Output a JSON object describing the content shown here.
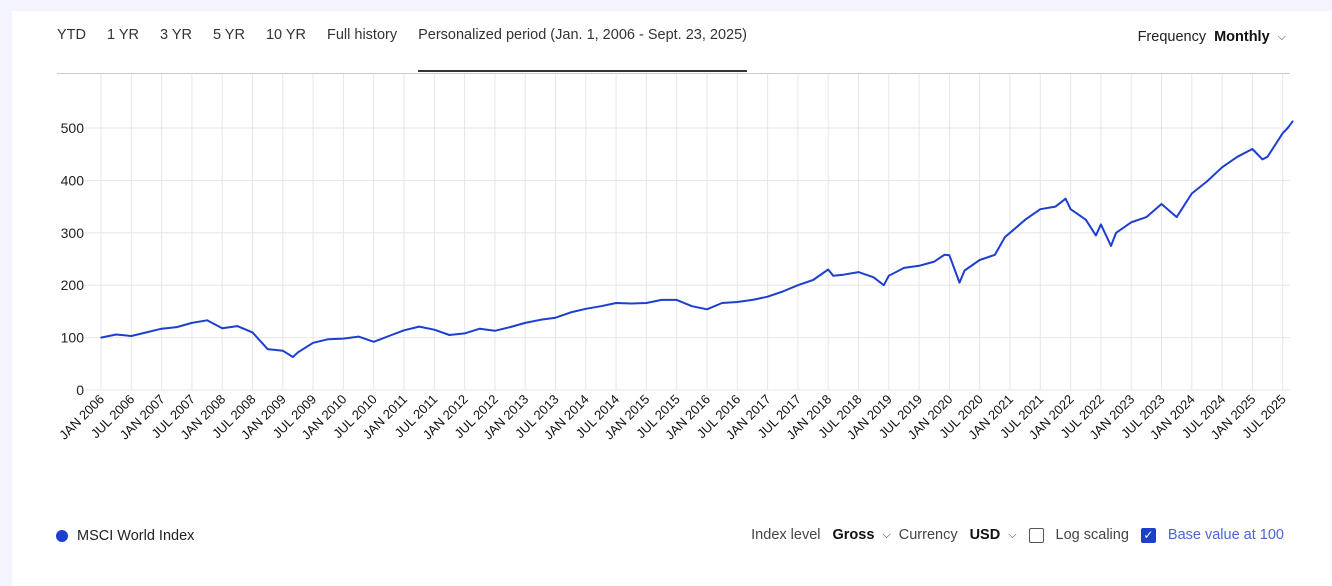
{
  "tabs": [
    "YTD",
    "1 YR",
    "3 YR",
    "5 YR",
    "10 YR",
    "Full history",
    "Personalized period (Jan. 1, 2006 - Sept. 23, 2025)"
  ],
  "active_tab": 6,
  "frequency": {
    "label": "Frequency",
    "value": "Monthly"
  },
  "legend": {
    "label": "MSCI World Index",
    "color": "#1d3fcf"
  },
  "controls": {
    "index_level_label": "Index level",
    "index_level_value": "Gross",
    "currency_label": "Currency",
    "currency_value": "USD",
    "log_scaling_label": "Log scaling",
    "log_scaling_checked": false,
    "base_value_label": "Base value at 100",
    "base_value_checked": true
  },
  "chart_data": {
    "type": "line",
    "title": "",
    "xlabel": "",
    "ylabel": "",
    "ylim": [
      0,
      500
    ],
    "yticks": [
      "0",
      "100",
      "200",
      "300",
      "400",
      "500"
    ],
    "xticks": [
      "JAN 2006",
      "JUL 2006",
      "JAN 2007",
      "JUL 2007",
      "JAN 2008",
      "JUL 2008",
      "JAN 2009",
      "JUL 2009",
      "JAN 2010",
      "JUL 2010",
      "JAN 2011",
      "JUL 2011",
      "JAN 2012",
      "JUL 2012",
      "JAN 2013",
      "JUL 2013",
      "JAN 2014",
      "JUL 2014",
      "JAN 2015",
      "JUL 2015",
      "JAN 2016",
      "JUL 2016",
      "JAN 2017",
      "JUL 2017",
      "JAN 2018",
      "JUL 2018",
      "JAN 2019",
      "JUL 2019",
      "JAN 2020",
      "JUL 2020",
      "JAN 2021",
      "JUL 2021",
      "JAN 2022",
      "JUL 2022",
      "JAN 2023",
      "JUL 2023",
      "JAN 2024",
      "JUL 2024",
      "JAN 2025",
      "JUL 2025"
    ],
    "grid": true,
    "series": [
      {
        "name": "MSCI World Index",
        "color": "#1d3fcf",
        "x": [
          "2006-01",
          "2006-04",
          "2006-07",
          "2006-10",
          "2007-01",
          "2007-04",
          "2007-07",
          "2007-10",
          "2008-01",
          "2008-04",
          "2008-07",
          "2008-10",
          "2009-01",
          "2009-03",
          "2009-04",
          "2009-07",
          "2009-10",
          "2010-01",
          "2010-04",
          "2010-07",
          "2010-10",
          "2011-01",
          "2011-04",
          "2011-07",
          "2011-10",
          "2012-01",
          "2012-04",
          "2012-07",
          "2012-10",
          "2013-01",
          "2013-04",
          "2013-07",
          "2013-10",
          "2014-01",
          "2014-04",
          "2014-07",
          "2014-10",
          "2015-01",
          "2015-04",
          "2015-07",
          "2015-10",
          "2016-01",
          "2016-04",
          "2016-07",
          "2016-10",
          "2017-01",
          "2017-04",
          "2017-07",
          "2017-10",
          "2018-01",
          "2018-02",
          "2018-04",
          "2018-07",
          "2018-10",
          "2018-12",
          "2019-01",
          "2019-04",
          "2019-07",
          "2019-10",
          "2019-12",
          "2020-01",
          "2020-03",
          "2020-04",
          "2020-07",
          "2020-10",
          "2020-12",
          "2021-01",
          "2021-04",
          "2021-07",
          "2021-10",
          "2021-12",
          "2022-01",
          "2022-04",
          "2022-06",
          "2022-07",
          "2022-09",
          "2022-10",
          "2023-01",
          "2023-04",
          "2023-07",
          "2023-10",
          "2024-01",
          "2024-04",
          "2024-07",
          "2024-10",
          "2025-01",
          "2025-03",
          "2025-04",
          "2025-07",
          "2025-08",
          "2025-09"
        ],
        "values": [
          100,
          106,
          103,
          110,
          117,
          120,
          128,
          133,
          118,
          122,
          110,
          78,
          75,
          63,
          72,
          90,
          97,
          98,
          102,
          92,
          103,
          114,
          121,
          115,
          105,
          108,
          117,
          113,
          120,
          128,
          134,
          138,
          148,
          155,
          160,
          166,
          165,
          166,
          172,
          172,
          160,
          154,
          166,
          168,
          172,
          178,
          188,
          200,
          210,
          230,
          218,
          220,
          225,
          215,
          200,
          218,
          233,
          237,
          245,
          258,
          257,
          205,
          228,
          248,
          258,
          292,
          300,
          325,
          345,
          350,
          365,
          345,
          325,
          295,
          316,
          275,
          300,
          320,
          330,
          355,
          330,
          375,
          398,
          425,
          445,
          460,
          440,
          445,
          490,
          500,
          513
        ]
      }
    ]
  }
}
